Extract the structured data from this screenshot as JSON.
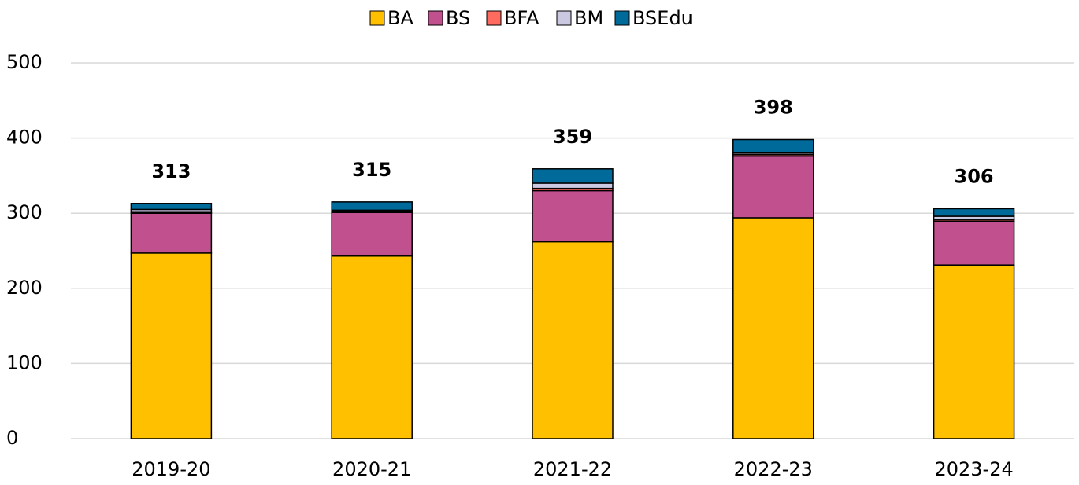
{
  "chart_data": {
    "type": "stacked_bar",
    "categories": [
      "2019-20",
      "2020-21",
      "2021-22",
      "2022-23",
      "2023-24"
    ],
    "series": [
      {
        "name": "BA",
        "color": "#ffc000",
        "values": [
          247,
          243,
          262,
          294,
          231
        ]
      },
      {
        "name": "BS",
        "color": "#c0508e",
        "values": [
          53,
          58,
          68,
          82,
          58
        ]
      },
      {
        "name": "BFA",
        "color": "#ff6b5e",
        "values": [
          1,
          1,
          3,
          2,
          2
        ]
      },
      {
        "name": "BM",
        "color": "#cbc8e2",
        "values": [
          4,
          2,
          7,
          2,
          5
        ]
      },
      {
        "name": "BSEdu",
        "color": "#006a9a",
        "values": [
          8,
          11,
          19,
          18,
          10
        ]
      }
    ],
    "totals": [
      313,
      315,
      359,
      398,
      306
    ],
    "ylim": [
      0,
      500
    ],
    "yticks": [
      0,
      100,
      200,
      300,
      400,
      500
    ],
    "grid": true,
    "legend": "top"
  }
}
